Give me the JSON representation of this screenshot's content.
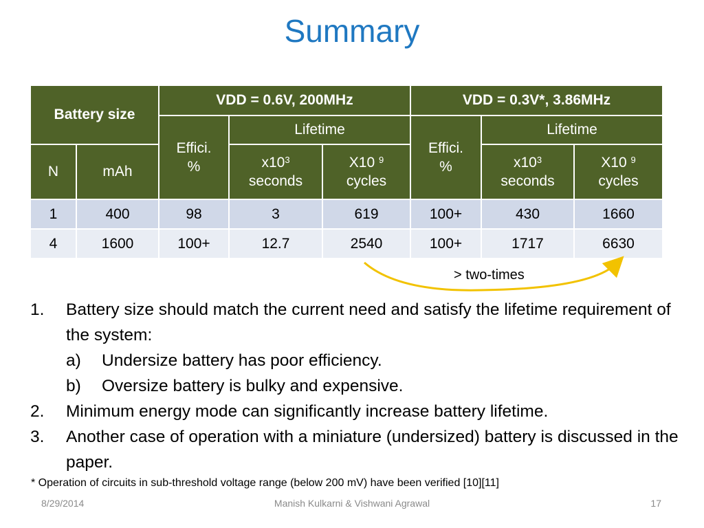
{
  "title": "Summary",
  "table": {
    "battery_size": "Battery size",
    "vdd1": "VDD = 0.6V, 200MHz",
    "vdd2": "VDD = 0.3V*, 3.86MHz",
    "effici": "Effici.",
    "pct": "%",
    "lifetime": "Lifetime",
    "n": "N",
    "mah": "mAh",
    "x10_a": "x10",
    "exp3": "3",
    "seconds": "seconds",
    "x10_b": "X10",
    "exp9": "9",
    "cycles": "cycles",
    "rows": [
      [
        "1",
        "400",
        "98",
        "3",
        "619",
        "100+",
        "430",
        "1660"
      ],
      [
        "4",
        "1600",
        "100+",
        "12.7",
        "2540",
        "100+",
        "1717",
        "6630"
      ]
    ]
  },
  "annotation": "> two-times",
  "arrow_color": "#f2c200",
  "list": {
    "i1_num": "1.",
    "i1": "Battery size should match the current need and satisfy the lifetime requirement of the system:",
    "ia_num": "a)",
    "ia": "Undersize battery has poor efficiency.",
    "ib_num": "b)",
    "ib": "Oversize battery is bulky and expensive.",
    "i2_num": "2.",
    "i2": "Minimum energy mode can significantly increase battery lifetime.",
    "i3_num": "3.",
    "i3": "Another case of operation with a miniature (undersized) battery is discussed in the paper."
  },
  "footnote": "* Operation of circuits in sub-threshold voltage range (below 200 mV) have been verified [10][11]",
  "footer": {
    "date": "8/29/2014",
    "authors": "Manish Kulkarni & Vishwani Agrawal",
    "page": "17"
  },
  "colors": {
    "title": "#1f78c1",
    "header_bg": "#4f6228",
    "row1_bg": "#d0d8e8",
    "row2_bg": "#e9edf4"
  }
}
